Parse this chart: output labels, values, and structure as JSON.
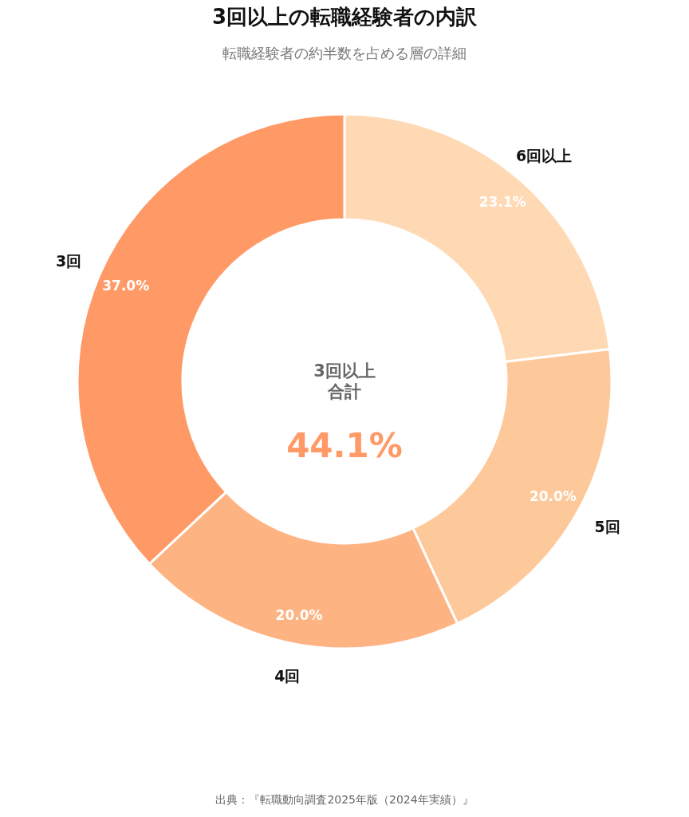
{
  "chart_data": {
    "type": "donut",
    "title": "3回以上の転職経験者の内訳",
    "subtitle": "転職経験者の約半数を占める層の詳細",
    "categories": [
      "6回以上",
      "5回",
      "4回",
      "3回"
    ],
    "values": [
      23.1,
      20.0,
      20.0,
      37.0
    ],
    "colors": [
      "#fed9b4",
      "#fec99a",
      "#feb383",
      "#ff9966"
    ],
    "value_labels": [
      "23.1%",
      "20.0%",
      "20.0%",
      "37.0%"
    ],
    "annotations": [
      "3回以上",
      "合計",
      "44.1%",
      "出典：『転職動向調査2025年版（2024年実績）』"
    ]
  }
}
